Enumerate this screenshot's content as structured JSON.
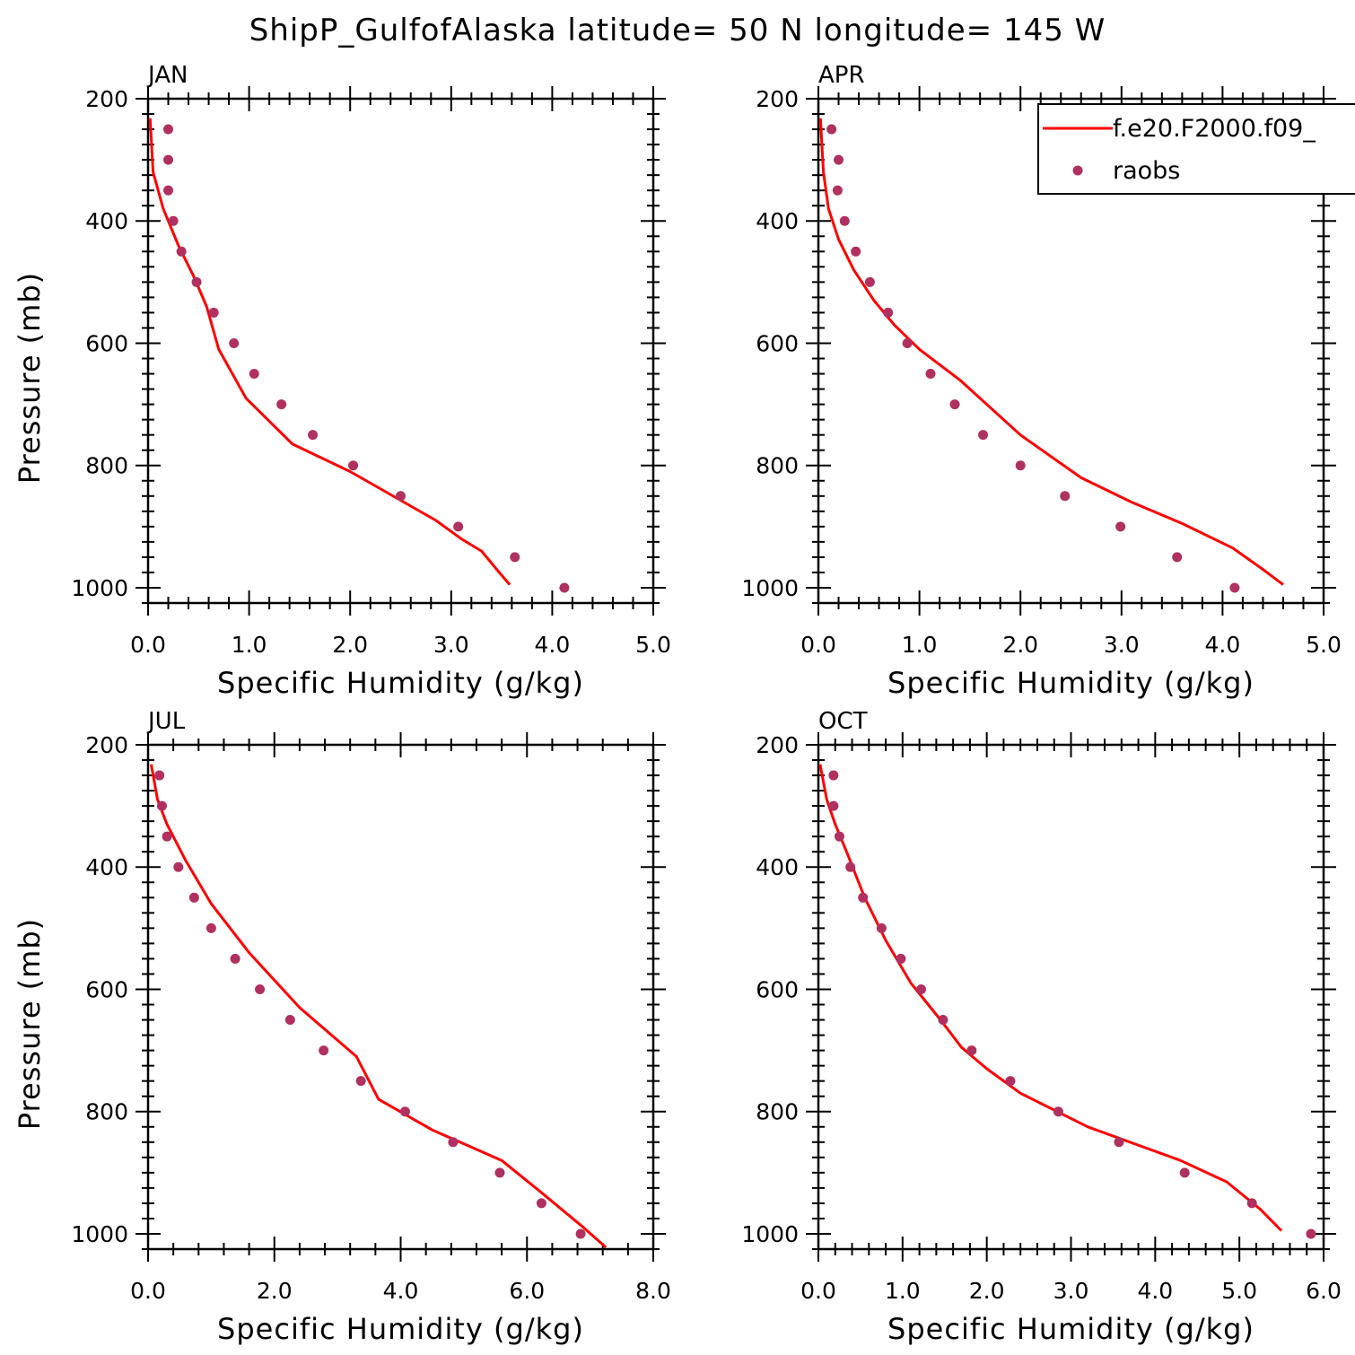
{
  "title": "ShipP_GulfofAlaska  latitude= 50 N longitude= 145 W",
  "legend": {
    "model_label": "f.e20.F2000.f09_",
    "obs_label": "raobs"
  },
  "colors": {
    "model_line": "#ff0000",
    "obs_marker": "#b03060"
  },
  "chart_data": [
    {
      "type": "line",
      "title": "JAN",
      "xlabel": "Specific Humidity (g/kg)",
      "ylabel": "Pressure (mb)",
      "xlim": [
        0,
        5
      ],
      "ylim": [
        200,
        1025
      ],
      "xticks": [
        0,
        1,
        2,
        3,
        4,
        5
      ],
      "xtick_labels": [
        "0.0",
        "1.0",
        "2.0",
        "3.0",
        "4.0",
        "5.0"
      ],
      "yticks": [
        200,
        400,
        600,
        800,
        1000
      ],
      "ytick_labels": [
        "200",
        "400",
        "600",
        "800",
        "1000"
      ],
      "model": {
        "q": [
          0.02,
          0.05,
          0.15,
          0.3,
          0.45,
          0.58,
          0.7,
          0.97,
          1.43,
          2.0,
          2.85,
          3.1,
          3.3,
          3.45,
          3.58
        ],
        "p": [
          232,
          320,
          380,
          440,
          490,
          540,
          610,
          690,
          765,
          810,
          890,
          920,
          940,
          970,
          995
        ]
      },
      "obs": {
        "q": [
          0.2,
          0.2,
          0.2,
          0.25,
          0.33,
          0.48,
          0.65,
          0.85,
          1.05,
          1.32,
          1.63,
          2.03,
          2.5,
          3.07,
          3.63,
          4.12
        ],
        "p": [
          250,
          300,
          350,
          400,
          450,
          500,
          550,
          600,
          650,
          700,
          750,
          800,
          850,
          900,
          950,
          1000
        ]
      }
    },
    {
      "type": "line",
      "title": "APR",
      "xlabel": "Specific Humidity (g/kg)",
      "ylabel": "",
      "xlim": [
        0,
        5
      ],
      "ylim": [
        200,
        1025
      ],
      "xticks": [
        0,
        1,
        2,
        3,
        4,
        5
      ],
      "xtick_labels": [
        "0.0",
        "1.0",
        "2.0",
        "3.0",
        "4.0",
        "5.0"
      ],
      "yticks": [
        200,
        400,
        600,
        800,
        1000
      ],
      "ytick_labels": [
        "200",
        "400",
        "600",
        "800",
        "1000"
      ],
      "model": {
        "q": [
          0.02,
          0.05,
          0.1,
          0.2,
          0.35,
          0.55,
          0.75,
          1.0,
          1.4,
          2.0,
          2.6,
          3.1,
          3.6,
          4.1,
          4.4,
          4.6
        ],
        "p": [
          232,
          320,
          380,
          430,
          480,
          530,
          570,
          610,
          660,
          750,
          820,
          860,
          895,
          935,
          970,
          995
        ]
      },
      "obs": {
        "q": [
          0.13,
          0.2,
          0.19,
          0.26,
          0.37,
          0.51,
          0.69,
          0.88,
          1.11,
          1.35,
          1.63,
          2.0,
          2.44,
          2.99,
          3.55,
          4.12
        ],
        "p": [
          250,
          300,
          350,
          400,
          450,
          500,
          550,
          600,
          650,
          700,
          750,
          800,
          850,
          900,
          950,
          1000
        ]
      }
    },
    {
      "type": "line",
      "title": "JUL",
      "xlabel": "Specific Humidity (g/kg)",
      "ylabel": "Pressure (mb)",
      "xlim": [
        0,
        8
      ],
      "ylim": [
        200,
        1025
      ],
      "xticks": [
        0,
        2,
        4,
        6,
        8
      ],
      "xtick_labels": [
        "0.0",
        "2.0",
        "4.0",
        "6.0",
        "8.0"
      ],
      "yticks": [
        200,
        400,
        600,
        800,
        1000
      ],
      "ytick_labels": [
        "200",
        "400",
        "600",
        "800",
        "1000"
      ],
      "model": {
        "q": [
          0.05,
          0.15,
          0.3,
          0.6,
          1.0,
          1.6,
          2.4,
          3.3,
          3.65,
          4.5,
          5.6,
          6.2,
          6.9,
          7.25
        ],
        "p": [
          232,
          290,
          330,
          390,
          460,
          540,
          630,
          710,
          780,
          830,
          880,
          930,
          990,
          1022
        ]
      },
      "obs": {
        "q": [
          0.18,
          0.22,
          0.3,
          0.48,
          0.73,
          1.0,
          1.38,
          1.77,
          2.25,
          2.78,
          3.37,
          4.07,
          4.83,
          5.57,
          6.23,
          6.85
        ],
        "p": [
          250,
          300,
          350,
          400,
          450,
          500,
          550,
          600,
          650,
          700,
          750,
          800,
          850,
          900,
          950,
          1000
        ]
      }
    },
    {
      "type": "line",
      "title": "OCT",
      "xlabel": "Specific Humidity (g/kg)",
      "ylabel": "",
      "xlim": [
        0,
        6
      ],
      "ylim": [
        200,
        1025
      ],
      "xticks": [
        0,
        1,
        2,
        3,
        4,
        5,
        6
      ],
      "xtick_labels": [
        "0.0",
        "1.0",
        "2.0",
        "3.0",
        "4.0",
        "5.0",
        "6.0"
      ],
      "yticks": [
        200,
        400,
        600,
        800,
        1000
      ],
      "ytick_labels": [
        "200",
        "400",
        "600",
        "800",
        "1000"
      ],
      "model": {
        "q": [
          0.02,
          0.1,
          0.2,
          0.35,
          0.55,
          0.8,
          1.1,
          1.45,
          1.7,
          2.0,
          2.4,
          3.2,
          4.3,
          4.85,
          5.25,
          5.5
        ],
        "p": [
          232,
          290,
          330,
          380,
          450,
          520,
          590,
          650,
          695,
          730,
          770,
          825,
          880,
          915,
          960,
          995
        ]
      },
      "obs": {
        "q": [
          0.18,
          0.18,
          0.25,
          0.38,
          0.53,
          0.75,
          0.98,
          1.22,
          1.48,
          1.82,
          2.28,
          2.85,
          3.57,
          4.35,
          5.15,
          5.85
        ],
        "p": [
          250,
          300,
          350,
          400,
          450,
          500,
          550,
          600,
          650,
          700,
          750,
          800,
          850,
          900,
          950,
          1000
        ]
      }
    }
  ]
}
